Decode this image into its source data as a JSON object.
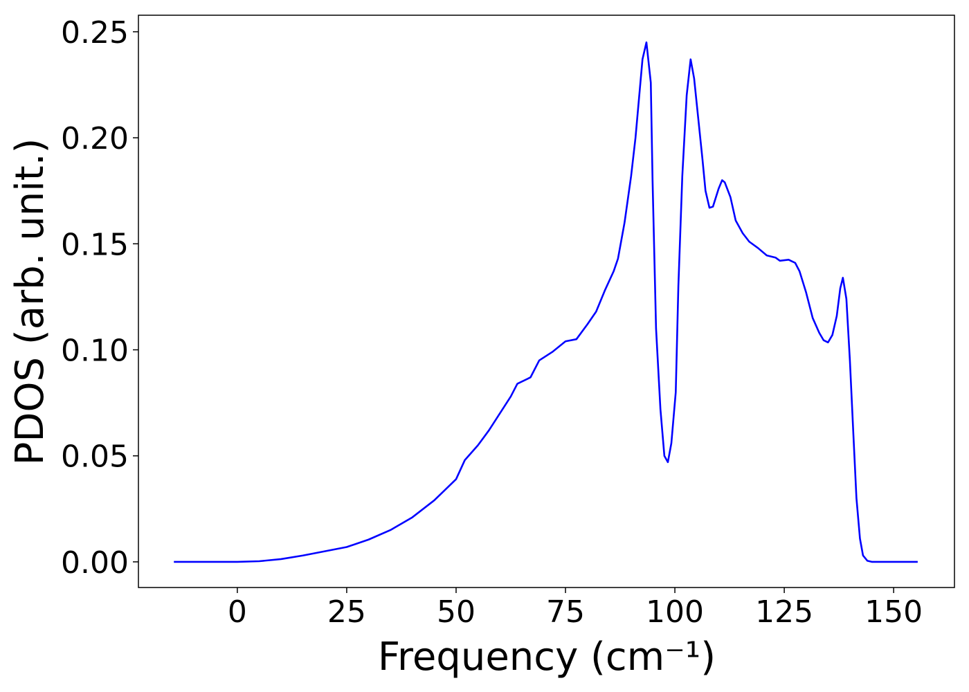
{
  "chart_data": {
    "type": "line",
    "xlabel": "Frequency (cm⁻¹)",
    "ylabel": "PDOS (arb. unit.)",
    "xlim": [
      -22.6,
      163.9
    ],
    "ylim": [
      -0.0121,
      0.2578
    ],
    "xticks": [
      0,
      25,
      50,
      75,
      100,
      125,
      150
    ],
    "yticks": [
      {
        "value": 0,
        "label": "0.00"
      },
      {
        "value": 0.05,
        "label": "0.05"
      },
      {
        "value": 0.1,
        "label": "0.10"
      },
      {
        "value": 0.15,
        "label": "0.15"
      },
      {
        "value": 0.2,
        "label": "0.20"
      },
      {
        "value": 0.25,
        "label": "0.25"
      }
    ],
    "x": [
      -14.5,
      0,
      5,
      10,
      15,
      20,
      25,
      30,
      35,
      40,
      45,
      50,
      52,
      55,
      57.5,
      60,
      62.5,
      64,
      67,
      69,
      72,
      75,
      77.5,
      80,
      82,
      84,
      86,
      87,
      88.5,
      90,
      91,
      92.6,
      93.5,
      94.5,
      94.9,
      95.7,
      96.7,
      97.6,
      98.4,
      99.2,
      100.2,
      100.8,
      101.7,
      102.7,
      103.6,
      104.4,
      105.3,
      106.3,
      107,
      107.9,
      108.7,
      110,
      110.8,
      111.4,
      112.7,
      113.9,
      115.5,
      117,
      119,
      121,
      123,
      124,
      126,
      127.5,
      128.5,
      130,
      131.5,
      133,
      134,
      135,
      136,
      137,
      137.8,
      138.4,
      139.2,
      140,
      140.8,
      141.5,
      142.3,
      143,
      144,
      145,
      155.5
    ],
    "series": [
      {
        "name": "PDOS",
        "color": "#0000ff",
        "values": [
          0,
          0,
          0.0003,
          0.0013,
          0.003,
          0.005,
          0.007,
          0.0105,
          0.015,
          0.021,
          0.029,
          0.039,
          0.048,
          0.055,
          0.062,
          0.07,
          0.078,
          0.084,
          0.087,
          0.095,
          0.099,
          0.104,
          0.105,
          0.112,
          0.118,
          0.128,
          0.137,
          0.143,
          0.16,
          0.182,
          0.2,
          0.237,
          0.245,
          0.226,
          0.18,
          0.11,
          0.072,
          0.05,
          0.047,
          0.056,
          0.08,
          0.13,
          0.182,
          0.22,
          0.237,
          0.228,
          0.21,
          0.19,
          0.175,
          0.167,
          0.1675,
          0.176,
          0.18,
          0.179,
          0.172,
          0.161,
          0.155,
          0.151,
          0.148,
          0.1445,
          0.1435,
          0.142,
          0.1425,
          0.141,
          0.137,
          0.127,
          0.115,
          0.108,
          0.1045,
          0.1035,
          0.107,
          0.116,
          0.129,
          0.134,
          0.124,
          0.095,
          0.06,
          0.03,
          0.011,
          0.003,
          0.0005,
          0,
          0
        ]
      }
    ]
  }
}
